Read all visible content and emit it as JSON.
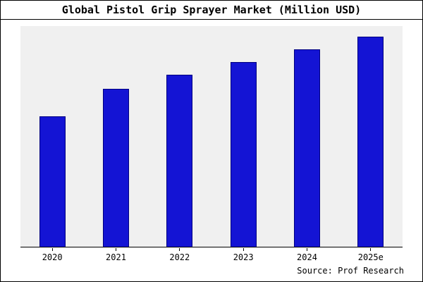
{
  "title": "Global Pistol Grip Sprayer Market (Million USD)",
  "source": "Source: Prof Research",
  "colors": {
    "bar": "#1414d4",
    "bar_edge": "#000080",
    "plot_background": "#f0f0f0",
    "frame": "#000000",
    "background": "#ffffff"
  },
  "chart_data": {
    "type": "bar",
    "title": "Global Pistol Grip Sprayer Market (Million USD)",
    "categories": [
      "2020",
      "2021",
      "2022",
      "2023",
      "2024",
      "2025e"
    ],
    "values": [
      62,
      75,
      82,
      88,
      94,
      100
    ],
    "xlabel": "",
    "ylabel": "",
    "ylim": [
      0,
      105
    ],
    "y_axis_visible": false,
    "grid": false,
    "legend": "none",
    "source": "Source: Prof Research"
  }
}
